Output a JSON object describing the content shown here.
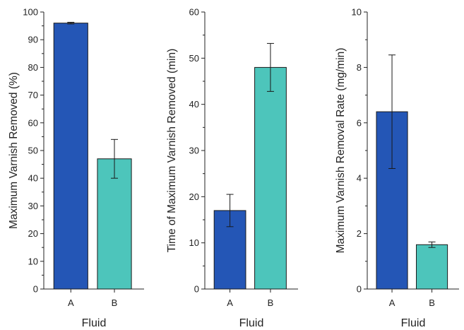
{
  "colors": {
    "bar_A": "#2456b6",
    "bar_B": "#4dc5bb",
    "outline": "#1a1a1a",
    "axis": "#222222"
  },
  "chart_data": [
    {
      "type": "bar",
      "categories": [
        "A",
        "B"
      ],
      "values": [
        96,
        47
      ],
      "errors": [
        0.3,
        7
      ],
      "ylabel": "Maximum Varnish Removed (%)",
      "xlabel": "Fluid",
      "ylim": [
        0,
        100
      ],
      "ticks": [
        0,
        10,
        20,
        30,
        40,
        50,
        60,
        70,
        80,
        90,
        100
      ],
      "tick_labels": [
        "0",
        "10",
        "20",
        "30",
        "40",
        "50",
        "60",
        "70",
        "80",
        "90",
        "100"
      ]
    },
    {
      "type": "bar",
      "categories": [
        "A",
        "B"
      ],
      "values": [
        17,
        48
      ],
      "errors": [
        3.5,
        5.2
      ],
      "ylabel": "Time of Maximum Varnish Removed (min)",
      "xlabel": "Fluid",
      "ylim": [
        0,
        60
      ],
      "ticks": [
        0,
        10,
        20,
        30,
        40,
        50,
        60
      ],
      "tick_labels": [
        "0",
        "10",
        "20",
        "30",
        "40",
        "50",
        "60"
      ]
    },
    {
      "type": "bar",
      "categories": [
        "A",
        "B"
      ],
      "values": [
        6.4,
        1.6
      ],
      "errors": [
        2.05,
        0.1
      ],
      "ylabel": "Maximum Varnish Removal Rate (mg/min)",
      "xlabel": "Fluid",
      "ylim": [
        0,
        10
      ],
      "ticks": [
        0,
        2,
        4,
        6,
        8,
        10
      ],
      "tick_labels": [
        "0",
        "2",
        "4",
        "6",
        "8",
        "10"
      ]
    }
  ]
}
